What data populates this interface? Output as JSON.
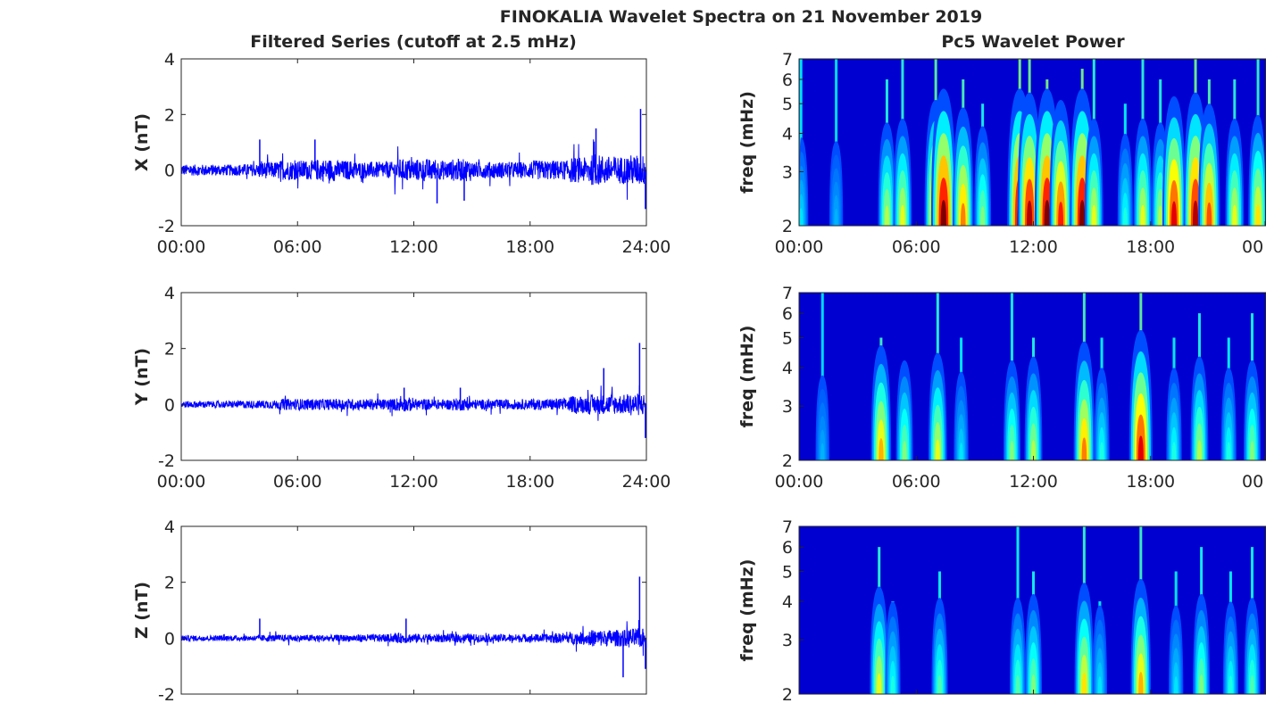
{
  "chart_data": {
    "type": "line+heatmap",
    "title": "FINOKALIA Wavelet Spectra on 21 November 2019",
    "left_title": "Filtered Series (cutoff at 2.5 mHz)",
    "right_title": "Pc5 Wavelet Power",
    "x_ticks": [
      "00:00",
      "06:00",
      "12:00",
      "18:00",
      "24:00"
    ],
    "x_ticks_right": [
      "00:00",
      "06:00",
      "12:00",
      "18:00",
      "00"
    ],
    "xlim_hours": [
      0,
      24
    ],
    "series_ylim": [
      -2,
      4
    ],
    "series_yticks": [
      "4",
      "2",
      "0",
      "-2"
    ],
    "freq_ylim": [
      2,
      7
    ],
    "freq_yticks": [
      "7",
      "6",
      "5",
      "4",
      "3",
      "2"
    ],
    "freq_ylabel": "freq (mHz)",
    "line_color": "#0000ff",
    "panels": [
      {
        "ylabel": "X (nT)",
        "envelope_hourly": [
          0.2,
          0.2,
          0.2,
          0.22,
          0.3,
          0.35,
          0.35,
          0.4,
          0.35,
          0.3,
          0.3,
          0.4,
          0.4,
          0.35,
          0.4,
          0.3,
          0.3,
          0.3,
          0.35,
          0.35,
          0.45,
          0.55,
          0.5,
          0.55
        ],
        "spikes": [
          [
            4.05,
            1.1
          ],
          [
            6.9,
            1.1
          ],
          [
            13.2,
            -1.2
          ],
          [
            14.6,
            -1.1
          ],
          [
            21.4,
            1.5
          ],
          [
            23.7,
            2.2
          ],
          [
            23.95,
            -1.4
          ]
        ],
        "wavelet_events": [
          [
            0.1,
            0.35,
            7
          ],
          [
            1.9,
            0.3,
            7
          ],
          [
            4.5,
            0.55,
            6
          ],
          [
            5.3,
            0.6,
            7
          ],
          [
            7.0,
            0.85,
            7
          ],
          [
            7.4,
            1.0,
            5
          ],
          [
            8.4,
            0.75,
            6
          ],
          [
            9.4,
            0.5,
            5
          ],
          [
            11.3,
            1.0,
            7
          ],
          [
            11.8,
            0.95,
            7
          ],
          [
            12.7,
            1.0,
            6
          ],
          [
            13.4,
            0.85,
            5
          ],
          [
            14.5,
            1.0,
            6.5
          ],
          [
            15.1,
            0.6,
            7
          ],
          [
            16.7,
            0.4,
            5
          ],
          [
            17.6,
            0.6,
            7
          ],
          [
            18.5,
            0.55,
            6
          ],
          [
            19.2,
            0.9,
            5
          ],
          [
            20.3,
            0.95,
            7
          ],
          [
            21.0,
            0.8,
            6
          ],
          [
            22.3,
            0.6,
            6
          ],
          [
            23.5,
            0.65,
            7
          ]
        ]
      },
      {
        "ylabel": "Y (nT)",
        "envelope_hourly": [
          0.12,
          0.12,
          0.12,
          0.14,
          0.15,
          0.2,
          0.2,
          0.2,
          0.2,
          0.2,
          0.2,
          0.25,
          0.2,
          0.18,
          0.22,
          0.18,
          0.18,
          0.18,
          0.2,
          0.22,
          0.3,
          0.35,
          0.35,
          0.4
        ],
        "spikes": [
          [
            11.5,
            0.6
          ],
          [
            14.4,
            0.6
          ],
          [
            21.8,
            1.3
          ],
          [
            23.65,
            2.2
          ],
          [
            23.95,
            -1.2
          ]
        ],
        "wavelet_events": [
          [
            1.2,
            0.3,
            7
          ],
          [
            4.2,
            0.7,
            5
          ],
          [
            5.4,
            0.5,
            4
          ],
          [
            7.1,
            0.6,
            7
          ],
          [
            8.3,
            0.35,
            5
          ],
          [
            10.9,
            0.5,
            7
          ],
          [
            12.0,
            0.55,
            5
          ],
          [
            14.6,
            0.75,
            7
          ],
          [
            15.5,
            0.4,
            5
          ],
          [
            17.5,
            0.9,
            7
          ],
          [
            19.2,
            0.4,
            5
          ],
          [
            20.5,
            0.55,
            6
          ],
          [
            22.0,
            0.4,
            5
          ],
          [
            23.2,
            0.5,
            6
          ]
        ]
      },
      {
        "ylabel": "Z (nT)",
        "envelope_hourly": [
          0.1,
          0.1,
          0.1,
          0.1,
          0.12,
          0.12,
          0.12,
          0.12,
          0.12,
          0.14,
          0.14,
          0.18,
          0.16,
          0.15,
          0.16,
          0.14,
          0.14,
          0.14,
          0.15,
          0.18,
          0.22,
          0.3,
          0.3,
          0.35
        ],
        "spikes": [
          [
            4.05,
            0.7
          ],
          [
            11.6,
            0.7
          ],
          [
            22.8,
            -1.4
          ],
          [
            23.65,
            2.2
          ],
          [
            23.95,
            -1.1
          ]
        ],
        "wavelet_events": [
          [
            4.1,
            0.6,
            6
          ],
          [
            4.8,
            0.4,
            4
          ],
          [
            7.2,
            0.45,
            5
          ],
          [
            11.2,
            0.45,
            7
          ],
          [
            12.0,
            0.5,
            5
          ],
          [
            14.6,
            0.65,
            7
          ],
          [
            15.4,
            0.35,
            4
          ],
          [
            17.5,
            0.7,
            7
          ],
          [
            19.3,
            0.35,
            5
          ],
          [
            20.6,
            0.5,
            6
          ],
          [
            22.1,
            0.4,
            5
          ],
          [
            23.2,
            0.45,
            6
          ]
        ]
      }
    ]
  }
}
